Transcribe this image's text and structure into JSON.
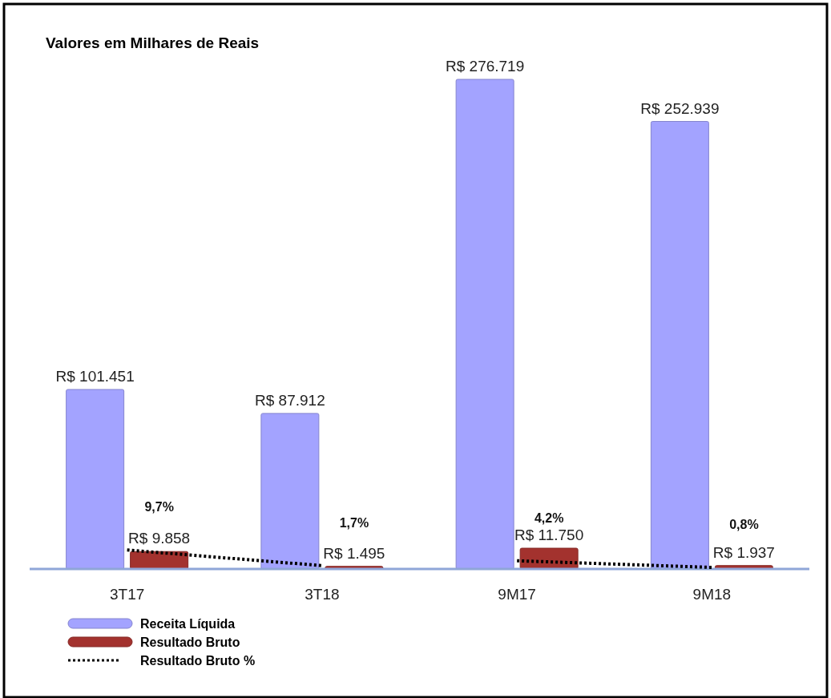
{
  "chart_data": {
    "type": "bar",
    "title": "Valores em Milhares de Reais",
    "categories": [
      "3T17",
      "3T18",
      "9M17",
      "9M18"
    ],
    "series": [
      {
        "name": "Receita Líquida",
        "color": "#a3a3ff",
        "values": [
          101451,
          87912,
          276719,
          252939
        ],
        "value_labels": [
          "R$ 101.451",
          "R$ 87.912",
          "R$ 276.719",
          "R$ 252.939"
        ]
      },
      {
        "name": "Resultado Bruto",
        "color": "#a3322e",
        "values": [
          9858,
          1495,
          11750,
          1937
        ],
        "value_labels": [
          "R$ 9.858",
          "R$ 1.495",
          "R$ 11.750",
          "R$ 1.937"
        ]
      },
      {
        "name": "Resultado Bruto %",
        "type": "line",
        "axis": "y2",
        "color": "#000000",
        "line_style": "dotted",
        "values": [
          9.7,
          1.7,
          null,
          null
        ],
        "value_labels": [
          "9,7%",
          "1,7%",
          null,
          null
        ]
      },
      {
        "type": "line",
        "axis": "y2",
        "color": "#000000",
        "line_style": "dotted",
        "values": [
          null,
          null,
          4.2,
          0.8
        ],
        "value_labels": [
          null,
          null,
          "4,2%",
          "0,8%"
        ]
      }
    ],
    "y2lim": [
      0,
      250
    ],
    "tick_labels": "x",
    "legend": "bottom left"
  }
}
